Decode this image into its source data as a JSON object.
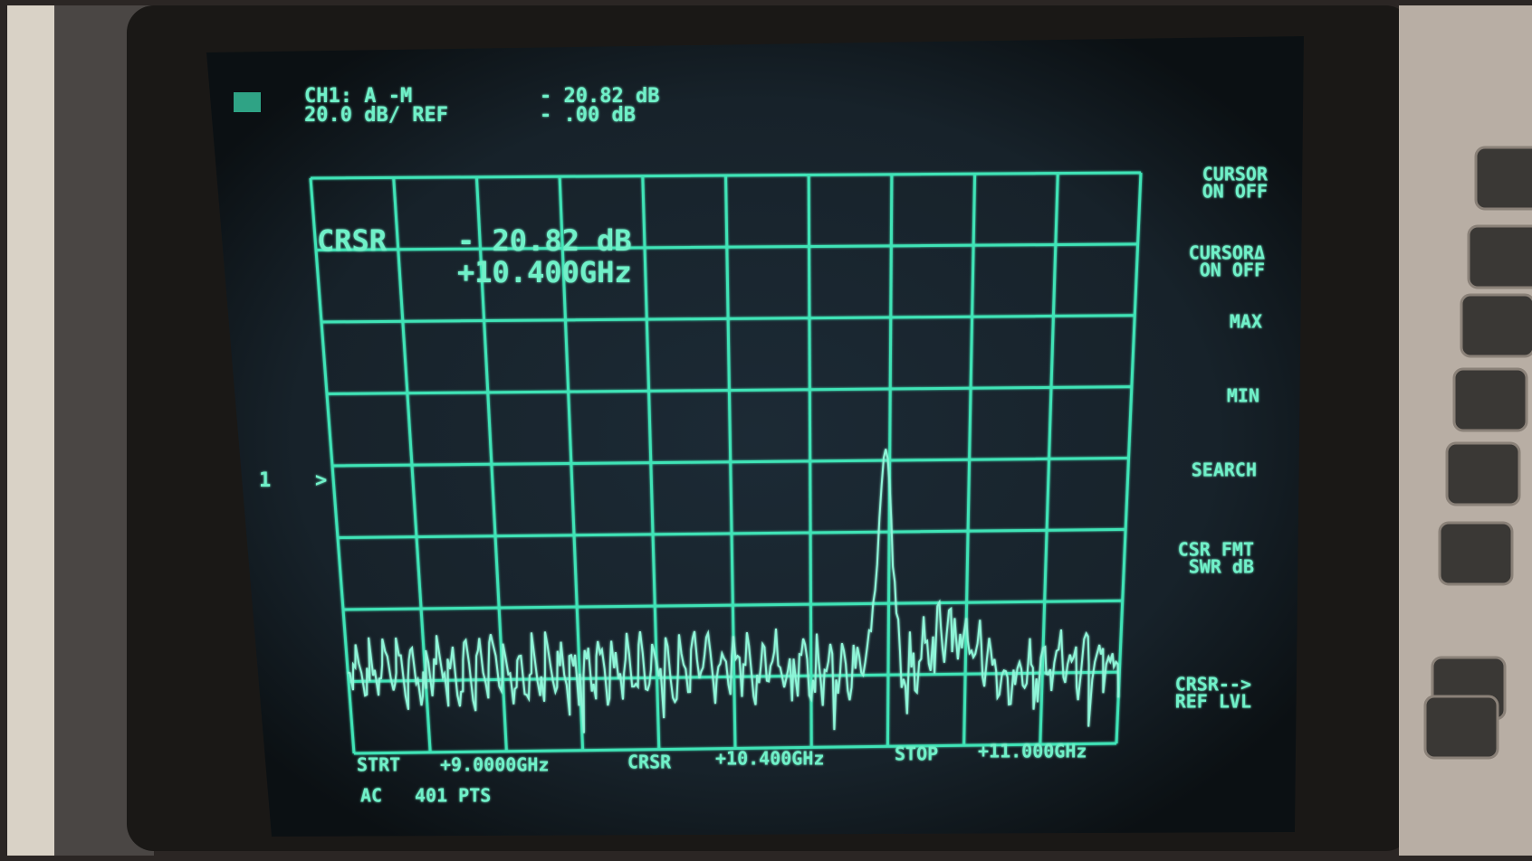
{
  "header": {
    "line1": {
      "channel": "CH1: A  -M",
      "value": "- 20.82 dB"
    },
    "line2": {
      "scale": "20.0 dB/  REF",
      "value": "-   .00 dB"
    }
  },
  "cursor_readout": {
    "label": "CRSR",
    "level": "- 20.82 dB",
    "frequency": "+10.400GHz"
  },
  "reference_marker": {
    "label": "1",
    "arrow": ">"
  },
  "softkeys": [
    {
      "line1": "CURSOR",
      "line2": "ON OFF"
    },
    {
      "line1": "CURSORΔ",
      "line2": "ON OFF"
    },
    {
      "line1": "MAX"
    },
    {
      "line1": "MIN"
    },
    {
      "line1": "SEARCH"
    },
    {
      "line1": "CSR FMT",
      "line2": "SWR  dB"
    },
    {
      "line1": "CRSR-->",
      "line2": "REF LVL"
    }
  ],
  "footer": {
    "start_label": "STRT",
    "start": "+9.0000GHz",
    "cursor_label": "CRSR",
    "cursor": "+10.400GHz",
    "stop_label": "STOP",
    "stop": "+11.000GHz",
    "coupling": "AC",
    "points": "401 PTS"
  }
}
